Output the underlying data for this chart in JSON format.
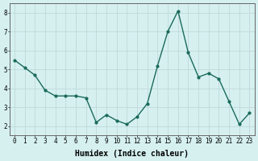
{
  "x": [
    0,
    1,
    2,
    3,
    4,
    5,
    6,
    7,
    8,
    9,
    10,
    11,
    12,
    13,
    14,
    15,
    16,
    17,
    18,
    19,
    20,
    21,
    22,
    23
  ],
  "y": [
    5.5,
    5.1,
    4.7,
    3.9,
    3.6,
    3.6,
    3.6,
    3.5,
    2.2,
    2.6,
    2.3,
    2.1,
    2.5,
    3.2,
    5.2,
    7.0,
    8.1,
    5.9,
    4.6,
    4.8,
    4.5,
    3.3,
    2.1,
    2.7
  ],
  "line_color": "#1a6b5a",
  "marker": "o",
  "markersize": 2.0,
  "linewidth": 1.0,
  "xlabel": "Humidex (Indice chaleur)",
  "xlabel_fontsize": 7,
  "xlabel_bold": true,
  "ylabel_ticks": [
    2,
    3,
    4,
    5,
    6,
    7,
    8
  ],
  "xtick_labels": [
    "0",
    "1",
    "2",
    "3",
    "4",
    "5",
    "6",
    "7",
    "8",
    "9",
    "10",
    "11",
    "12",
    "13",
    "14",
    "15",
    "16",
    "17",
    "18",
    "19",
    "20",
    "21",
    "22",
    "23"
  ],
  "ylim": [
    1.5,
    8.5
  ],
  "xlim": [
    -0.5,
    23.5
  ],
  "bg_color": "#d6f0f0",
  "grid_color": "#c0d8d8",
  "tick_fontsize": 5.5,
  "title": ""
}
